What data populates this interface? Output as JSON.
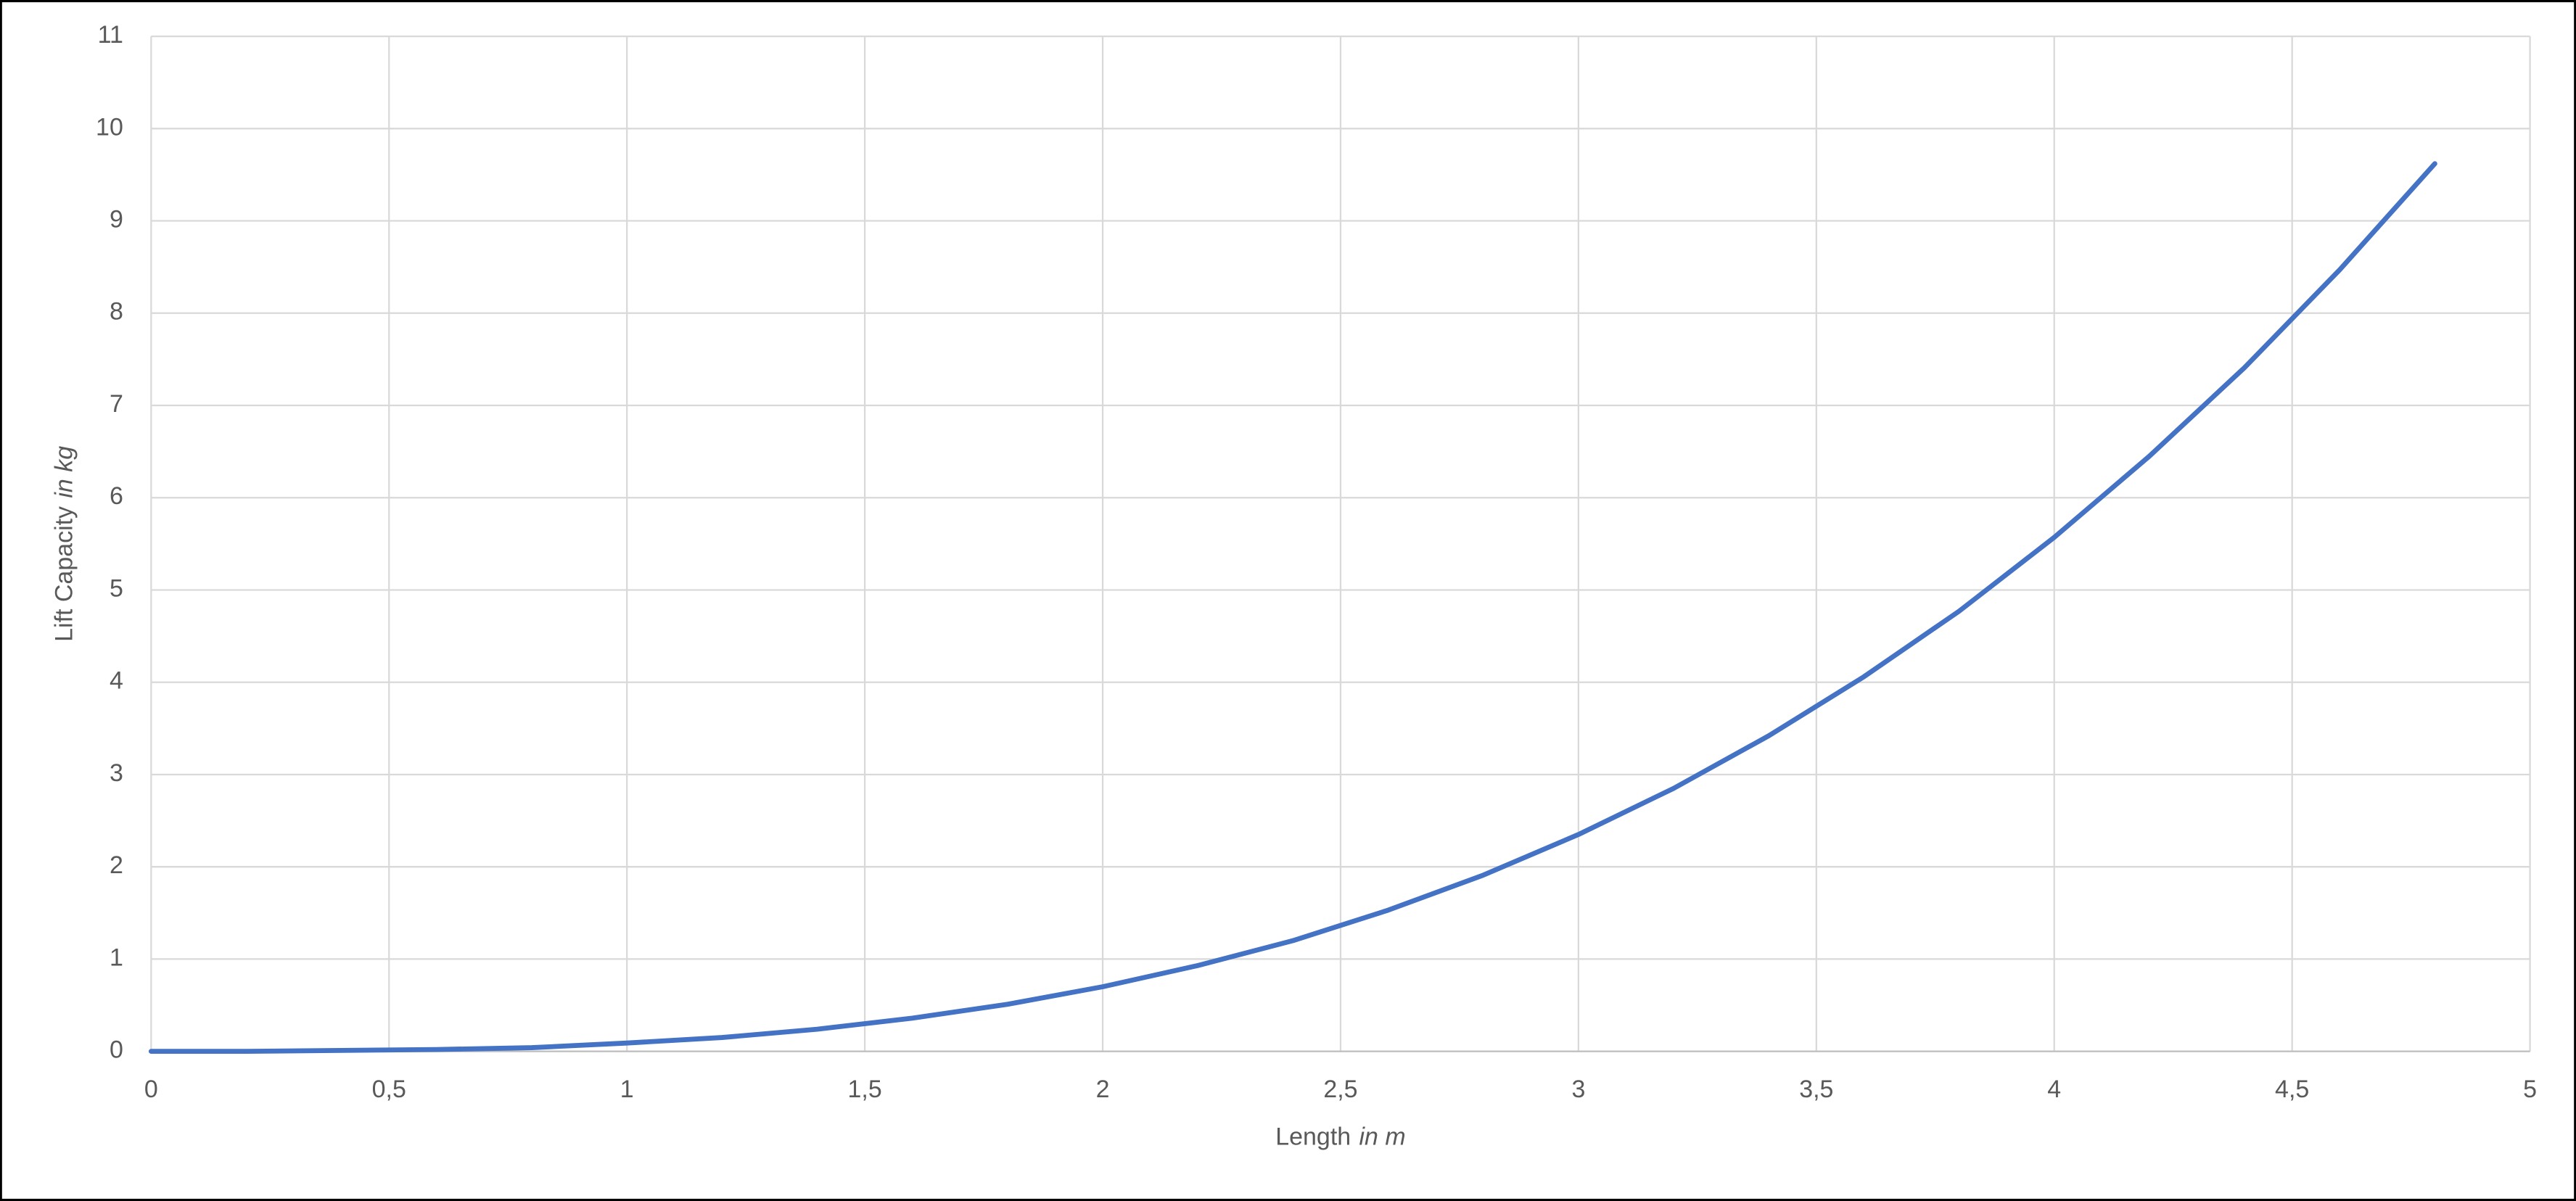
{
  "chart_data": {
    "type": "line",
    "x_label": {
      "text": "Length",
      "unit": "in m"
    },
    "y_label": {
      "text": "Lift Capacity",
      "unit": "in kg"
    },
    "x": [
      0,
      0.2,
      0.4,
      0.6,
      0.8,
      1.0,
      1.2,
      1.4,
      1.6,
      1.8,
      2.0,
      2.2,
      2.4,
      2.6,
      2.8,
      3.0,
      3.2,
      3.4,
      3.6,
      3.8,
      4.0,
      4.2,
      4.4,
      4.6,
      4.8
    ],
    "series": [
      {
        "color": "#4472c4",
        "values": [
          0,
          0,
          0.01,
          0.02,
          0.04,
          0.09,
          0.15,
          0.24,
          0.36,
          0.51,
          0.7,
          0.93,
          1.2,
          1.53,
          1.91,
          2.35,
          2.85,
          3.42,
          4.06,
          4.77,
          5.57,
          6.45,
          7.41,
          8.47,
          9.62
        ]
      }
    ],
    "xlim": [
      0,
      5
    ],
    "ylim": [
      0,
      11
    ],
    "xticks": [
      0,
      {
        "value": 0.5,
        "label": "0,5"
      },
      1,
      {
        "value": 1.5,
        "label": "1,5"
      },
      2,
      {
        "value": 2.5,
        "label": "2,5"
      },
      3,
      {
        "value": 3.5,
        "label": "3,5"
      },
      4,
      {
        "value": 4.5,
        "label": "4,5"
      },
      5
    ],
    "yticks": [
      0,
      1,
      2,
      3,
      4,
      5,
      6,
      7,
      8,
      9,
      10,
      11
    ],
    "grid": true
  }
}
